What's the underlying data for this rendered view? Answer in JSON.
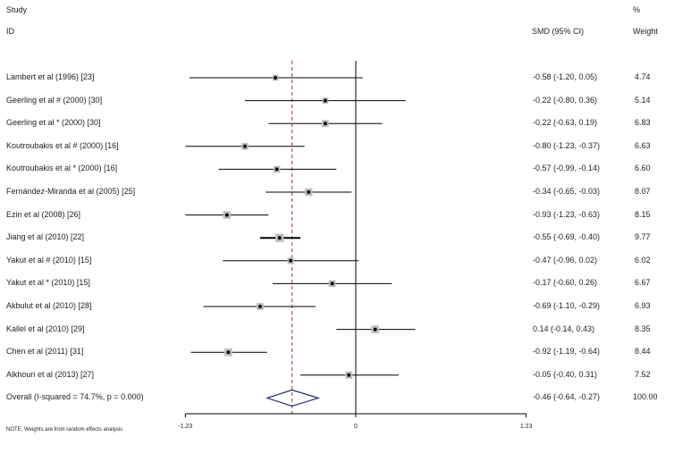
{
  "headers": {
    "study_line1": "Study",
    "study_line2": "ID",
    "effect": "SMD (95% CI)",
    "weight_line1": "%",
    "weight_line2": "Weight"
  },
  "note": "NOTE: Weights are from random effects analysis",
  "chart_data": {
    "type": "forest",
    "measure": "SMD (95% CI)",
    "xlim": [
      -1.23,
      1.23
    ],
    "x_ticks": [
      -1.23,
      0,
      1.23
    ],
    "x_tick_labels": [
      "-1.23",
      "0",
      "1.23"
    ],
    "reference_line": 0,
    "overall_effect_line": -0.46,
    "studies": [
      {
        "label": "Lambert et al (1996) [23]",
        "smd": -0.58,
        "lower": -1.2,
        "upper": 0.05,
        "ci_text": "-0.58 (-1.20, 0.05)",
        "weight": "4.74"
      },
      {
        "label": "Geerling et al # (2000) [30]",
        "smd": -0.22,
        "lower": -0.8,
        "upper": 0.36,
        "ci_text": "-0.22 (-0.80, 0.36)",
        "weight": "5.14"
      },
      {
        "label": "Geerling et al * (2000) [30]",
        "smd": -0.22,
        "lower": -0.63,
        "upper": 0.19,
        "ci_text": "-0.22 (-0.63, 0.19)",
        "weight": "6.83"
      },
      {
        "label": "Koutroubakis et al # (2000) [16]",
        "smd": -0.8,
        "lower": -1.23,
        "upper": -0.37,
        "ci_text": "-0.80 (-1.23, -0.37)",
        "weight": "6.63"
      },
      {
        "label": "Koutroubakis et al * (2000) [16]",
        "smd": -0.57,
        "lower": -0.99,
        "upper": -0.14,
        "ci_text": "-0.57 (-0.99, -0.14)",
        "weight": "6.60"
      },
      {
        "label": "Fernández-Miranda et al (2005) [25]",
        "smd": -0.34,
        "lower": -0.65,
        "upper": -0.03,
        "ci_text": "-0.34 (-0.65, -0.03)",
        "weight": "8.07"
      },
      {
        "label": "Ezin et al (2008) [26]",
        "smd": -0.93,
        "lower": -1.23,
        "upper": -0.63,
        "ci_text": "-0.93 (-1.23, -0.63)",
        "weight": "8.15"
      },
      {
        "label": "Jiang et al (2010) [22]",
        "smd": -0.55,
        "lower": -0.69,
        "upper": -0.4,
        "ci_text": "-0.55 (-0.69, -0.40)",
        "weight": "9.77"
      },
      {
        "label": "Yakut et al # (2010) [15]",
        "smd": -0.47,
        "lower": -0.96,
        "upper": 0.02,
        "ci_text": "-0.47 (-0.96, 0.02)",
        "weight": "6.02"
      },
      {
        "label": "Yakut et al * (2010) [15]",
        "smd": -0.17,
        "lower": -0.6,
        "upper": 0.26,
        "ci_text": "-0.17 (-0.60, 0.26)",
        "weight": "6.67"
      },
      {
        "label": "Akbulut et al (2010) [28]",
        "smd": -0.69,
        "lower": -1.1,
        "upper": -0.29,
        "ci_text": "-0.69 (-1.10, -0.29)",
        "weight": "6.93"
      },
      {
        "label": "Kallel et al (2010) [29]",
        "smd": 0.14,
        "lower": -0.14,
        "upper": 0.43,
        "ci_text": "0.14 (-0.14, 0.43)",
        "weight": "8.35"
      },
      {
        "label": "Chen et al (2011) [31]",
        "smd": -0.92,
        "lower": -1.19,
        "upper": -0.64,
        "ci_text": "-0.92 (-1.19, -0.64)",
        "weight": "8.44"
      },
      {
        "label": "Alkhouri et al (2013) [27]",
        "smd": -0.05,
        "lower": -0.4,
        "upper": 0.31,
        "ci_text": "-0.05 (-0.40, 0.31)",
        "weight": "7.52"
      }
    ],
    "overall": {
      "label": "Overall (I-squared = 74.7%, p = 0.000)",
      "smd": -0.46,
      "lower": -0.64,
      "upper": -0.27,
      "ci_text": "-0.46 (-0.64, -0.27)",
      "weight": "100.00"
    }
  }
}
